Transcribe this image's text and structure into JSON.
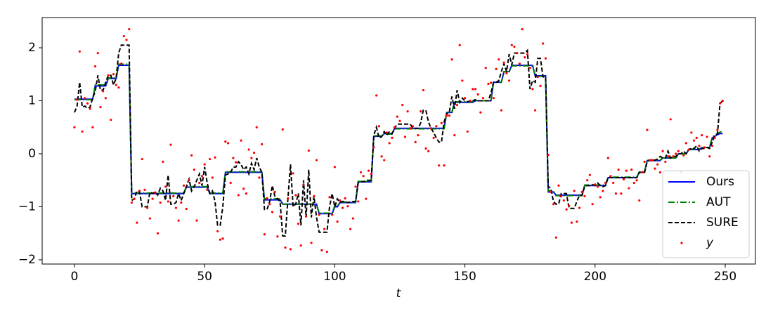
{
  "chart_data": {
    "type": "line",
    "xlabel": "t",
    "xlim": [
      -12.4,
      261.6
    ],
    "ylim": [
      -2.08,
      2.57
    ],
    "xticks": [
      0,
      50,
      100,
      150,
      200,
      250
    ],
    "yticks": [
      {
        "value": -2,
        "label": "−2"
      },
      {
        "value": -1,
        "label": "−1"
      },
      0,
      1,
      2
    ],
    "legend": "lower right",
    "x": [
      0,
      1,
      2,
      3,
      4,
      5,
      6,
      7,
      8,
      9,
      10,
      11,
      12,
      13,
      14,
      15,
      16,
      17,
      18,
      19,
      20,
      21,
      22,
      23,
      24,
      25,
      26,
      27,
      28,
      29,
      30,
      31,
      32,
      33,
      34,
      35,
      36,
      37,
      38,
      39,
      40,
      41,
      42,
      43,
      44,
      45,
      46,
      47,
      48,
      49,
      50,
      51,
      52,
      53,
      54,
      55,
      56,
      57,
      58,
      59,
      60,
      61,
      62,
      63,
      64,
      65,
      66,
      67,
      68,
      69,
      70,
      71,
      72,
      73,
      74,
      75,
      76,
      77,
      78,
      79,
      80,
      81,
      82,
      83,
      84,
      85,
      86,
      87,
      88,
      89,
      90,
      91,
      92,
      93,
      94,
      95,
      96,
      97,
      98,
      99,
      100,
      101,
      102,
      103,
      104,
      105,
      106,
      107,
      108,
      109,
      110,
      111,
      112,
      113,
      114,
      115,
      116,
      117,
      118,
      119,
      120,
      121,
      122,
      123,
      124,
      125,
      126,
      127,
      128,
      129,
      130,
      131,
      132,
      133,
      134,
      135,
      136,
      137,
      138,
      139,
      140,
      141,
      142,
      143,
      144,
      145,
      146,
      147,
      148,
      149,
      150,
      151,
      152,
      153,
      154,
      155,
      156,
      157,
      158,
      159,
      160,
      161,
      162,
      163,
      164,
      165,
      166,
      167,
      168,
      169,
      170,
      171,
      172,
      173,
      174,
      175,
      176,
      177,
      178,
      179,
      180,
      181,
      182,
      183,
      184,
      185,
      186,
      187,
      188,
      189,
      190,
      191,
      192,
      193,
      194,
      195,
      196,
      197,
      198,
      199,
      200,
      201,
      202,
      203,
      204,
      205,
      206,
      207,
      208,
      209,
      210,
      211,
      212,
      213,
      214,
      215,
      216,
      217,
      218,
      219,
      220,
      221,
      222,
      223,
      224,
      225,
      226,
      227,
      228,
      229,
      230,
      231,
      232,
      233,
      234,
      235,
      236,
      237,
      238,
      239,
      240,
      241,
      242,
      243,
      244,
      245,
      246,
      247,
      248,
      249
    ],
    "series": [
      {
        "name": "Ours",
        "color": "#0000ff",
        "style": "solid",
        "values": [
          1.03,
          1.03,
          1.03,
          1.03,
          1.03,
          1.03,
          1.03,
          1.03,
          1.28,
          1.28,
          1.28,
          1.28,
          1.28,
          1.42,
          1.42,
          1.42,
          1.42,
          1.67,
          1.67,
          1.67,
          1.67,
          1.67,
          -0.75,
          -0.75,
          -0.75,
          -0.75,
          -0.75,
          -0.75,
          -0.75,
          -0.75,
          -0.75,
          -0.75,
          -0.75,
          -0.75,
          -0.75,
          -0.75,
          -0.75,
          -0.75,
          -0.75,
          -0.75,
          -0.75,
          -0.75,
          -0.75,
          -0.63,
          -0.63,
          -0.63,
          -0.63,
          -0.63,
          -0.63,
          -0.63,
          -0.63,
          -0.63,
          -0.75,
          -0.75,
          -0.75,
          -0.75,
          -0.75,
          -0.75,
          -0.35,
          -0.35,
          -0.35,
          -0.35,
          -0.35,
          -0.35,
          -0.35,
          -0.35,
          -0.35,
          -0.35,
          -0.35,
          -0.35,
          -0.35,
          -0.35,
          -0.35,
          -0.87,
          -0.87,
          -0.87,
          -0.87,
          -0.87,
          -0.87,
          -0.87,
          -0.95,
          -0.95,
          -0.95,
          -0.95,
          -0.95,
          -0.95,
          -0.95,
          -0.95,
          -0.95,
          -0.95,
          -0.95,
          -0.95,
          -0.95,
          -0.95,
          -1.13,
          -1.13,
          -1.13,
          -1.13,
          -1.13,
          -1.13,
          -1.0,
          -1.0,
          -0.92,
          -0.92,
          -0.92,
          -0.92,
          -0.92,
          -0.92,
          -0.92,
          -0.53,
          -0.53,
          -0.53,
          -0.53,
          -0.53,
          -0.53,
          0.33,
          0.33,
          0.33,
          0.33,
          0.38,
          0.38,
          0.38,
          0.38,
          0.48,
          0.48,
          0.48,
          0.48,
          0.48,
          0.48,
          0.48,
          0.48,
          0.48,
          0.48,
          0.48,
          0.48,
          0.48,
          0.48,
          0.48,
          0.48,
          0.48,
          0.48,
          0.48,
          0.48,
          0.78,
          0.78,
          0.78,
          0.97,
          0.97,
          0.97,
          0.97,
          0.97,
          0.97,
          0.97,
          0.97,
          1.0,
          1.0,
          1.0,
          1.0,
          1.0,
          1.0,
          1.0,
          1.35,
          1.35,
          1.35,
          1.35,
          1.55,
          1.55,
          1.55,
          1.67,
          1.67,
          1.67,
          1.67,
          1.67,
          1.67,
          1.67,
          1.67,
          1.67,
          1.47,
          1.47,
          1.47,
          1.47,
          1.47,
          -0.72,
          -0.72,
          -0.72,
          -0.78,
          -0.78,
          -0.78,
          -0.78,
          -0.78,
          -0.78,
          -0.78,
          -0.78,
          -0.78,
          -0.78,
          -0.78,
          -0.6,
          -0.6,
          -0.6,
          -0.6,
          -0.6,
          -0.6,
          -0.6,
          -0.6,
          -0.6,
          -0.45,
          -0.45,
          -0.45,
          -0.45,
          -0.45,
          -0.45,
          -0.45,
          -0.45,
          -0.45,
          -0.45,
          -0.45,
          -0.45,
          -0.35,
          -0.35,
          -0.35,
          -0.13,
          -0.13,
          -0.13,
          -0.13,
          -0.13,
          -0.13,
          -0.08,
          -0.08,
          -0.08,
          -0.08,
          -0.08,
          -0.08,
          0.0,
          0.0,
          0.0,
          0.0,
          0.08,
          0.08,
          0.08,
          0.08,
          0.08,
          0.12,
          0.12,
          0.12,
          0.12,
          0.3,
          0.33,
          0.36,
          0.38,
          0.38
        ]
      },
      {
        "name": "AUT",
        "color": "#008000",
        "style": "dashdot",
        "values": [
          1.02,
          1.02,
          1.02,
          1.02,
          1.02,
          1.02,
          1.02,
          1.02,
          1.3,
          1.3,
          1.3,
          1.3,
          1.3,
          1.43,
          1.43,
          1.43,
          1.43,
          1.69,
          1.69,
          1.69,
          1.69,
          1.69,
          -0.74,
          -0.74,
          -0.74,
          -0.74,
          -0.74,
          -0.74,
          -0.74,
          -0.74,
          -0.74,
          -0.74,
          -0.74,
          -0.74,
          -0.74,
          -0.74,
          -0.74,
          -0.74,
          -0.74,
          -0.74,
          -0.74,
          -0.74,
          -0.74,
          -0.62,
          -0.62,
          -0.62,
          -0.62,
          -0.62,
          -0.62,
          -0.62,
          -0.62,
          -0.62,
          -0.74,
          -0.74,
          -0.74,
          -0.74,
          -0.74,
          -0.74,
          -0.34,
          -0.34,
          -0.34,
          -0.34,
          -0.34,
          -0.34,
          -0.34,
          -0.34,
          -0.34,
          -0.34,
          -0.34,
          -0.34,
          -0.34,
          -0.34,
          -0.34,
          -0.85,
          -0.85,
          -0.85,
          -0.85,
          -0.85,
          -0.85,
          -0.85,
          -0.95,
          -0.95,
          -0.95,
          -0.95,
          -0.95,
          -0.95,
          -0.95,
          -0.95,
          -0.95,
          -0.95,
          -0.95,
          -0.95,
          -0.95,
          -0.95,
          -1.12,
          -1.12,
          -1.12,
          -1.12,
          -1.12,
          -1.12,
          -0.98,
          -0.98,
          -0.91,
          -0.91,
          -0.91,
          -0.91,
          -0.91,
          -0.91,
          -0.91,
          -0.52,
          -0.52,
          -0.52,
          -0.52,
          -0.52,
          -0.52,
          0.34,
          0.34,
          0.34,
          0.34,
          0.37,
          0.37,
          0.37,
          0.37,
          0.47,
          0.47,
          0.47,
          0.47,
          0.47,
          0.47,
          0.47,
          0.47,
          0.47,
          0.47,
          0.47,
          0.47,
          0.47,
          0.47,
          0.47,
          0.47,
          0.47,
          0.47,
          0.47,
          0.47,
          0.78,
          0.78,
          0.78,
          0.98,
          0.98,
          0.98,
          0.98,
          0.98,
          0.98,
          0.98,
          0.98,
          1.0,
          1.0,
          1.0,
          1.0,
          1.0,
          1.0,
          1.0,
          1.35,
          1.35,
          1.35,
          1.35,
          1.55,
          1.55,
          1.55,
          1.66,
          1.66,
          1.66,
          1.66,
          1.66,
          1.66,
          1.66,
          1.66,
          1.66,
          1.46,
          1.46,
          1.46,
          1.46,
          1.46,
          -0.7,
          -0.7,
          -0.7,
          -0.79,
          -0.79,
          -0.79,
          -0.79,
          -0.79,
          -0.79,
          -0.79,
          -0.79,
          -0.79,
          -0.79,
          -0.79,
          -0.59,
          -0.59,
          -0.59,
          -0.59,
          -0.59,
          -0.59,
          -0.59,
          -0.59,
          -0.59,
          -0.44,
          -0.44,
          -0.44,
          -0.44,
          -0.44,
          -0.44,
          -0.44,
          -0.44,
          -0.44,
          -0.44,
          -0.44,
          -0.44,
          -0.34,
          -0.34,
          -0.34,
          -0.12,
          -0.12,
          -0.12,
          -0.12,
          -0.12,
          -0.12,
          -0.08,
          -0.08,
          -0.08,
          -0.08,
          -0.08,
          -0.08,
          0.0,
          0.0,
          0.0,
          0.0,
          0.09,
          0.09,
          0.09,
          0.09,
          0.09,
          0.12,
          0.12,
          0.12,
          0.12,
          0.31,
          0.35,
          0.38,
          0.41,
          0.42
        ]
      },
      {
        "name": "SURE",
        "color": "#000000",
        "style": "dashed",
        "values": [
          0.78,
          0.9,
          1.35,
          0.88,
          0.9,
          0.86,
          0.88,
          1.05,
          1.18,
          1.48,
          1.2,
          1.2,
          1.35,
          1.48,
          1.48,
          1.3,
          1.42,
          1.9,
          2.05,
          2.05,
          2.05,
          2.05,
          -0.88,
          -0.85,
          -0.7,
          -0.72,
          -1.0,
          -1.0,
          -1.0,
          -0.72,
          -0.75,
          -0.72,
          -0.78,
          -0.65,
          -0.7,
          -0.88,
          -0.4,
          -0.95,
          -0.95,
          -0.92,
          -0.75,
          -0.88,
          -0.75,
          -0.62,
          -0.48,
          -0.7,
          -0.62,
          -0.5,
          -0.38,
          -0.6,
          -0.25,
          -0.55,
          -0.75,
          -0.7,
          -0.9,
          -1.35,
          -1.35,
          -1.0,
          -0.4,
          -0.38,
          -0.35,
          -0.25,
          -0.25,
          -0.15,
          -0.2,
          -0.3,
          -0.25,
          -0.38,
          -0.18,
          -0.3,
          -0.08,
          -0.25,
          -0.35,
          -1.05,
          -1.05,
          -0.9,
          -0.6,
          -0.8,
          -0.85,
          -0.9,
          -1.55,
          -1.55,
          -0.85,
          -0.2,
          -1.0,
          -0.95,
          -0.75,
          -1.35,
          -0.5,
          -1.2,
          -0.3,
          -1.2,
          -0.8,
          -1.2,
          -1.48,
          -1.48,
          -1.48,
          -1.48,
          -1.0,
          -0.75,
          -1.0,
          -0.85,
          -0.92,
          -0.9,
          -0.9,
          -0.92,
          -0.92,
          -0.9,
          -0.9,
          -0.55,
          -0.53,
          -0.53,
          -0.5,
          -0.5,
          -0.5,
          0.35,
          0.5,
          0.3,
          0.32,
          0.42,
          0.35,
          0.42,
          0.38,
          0.48,
          0.56,
          0.56,
          0.56,
          0.56,
          0.56,
          0.56,
          0.48,
          0.48,
          0.48,
          0.58,
          0.82,
          0.82,
          0.6,
          0.48,
          0.4,
          0.3,
          0.22,
          0.22,
          0.6,
          0.75,
          0.78,
          1.08,
          0.85,
          1.2,
          0.97,
          1.05,
          1.0,
          0.98,
          1.0,
          1.0,
          1.02,
          1.0,
          1.0,
          1.0,
          1.0,
          1.0,
          1.15,
          1.35,
          1.35,
          1.38,
          1.55,
          1.7,
          1.55,
          1.88,
          1.68,
          1.9,
          1.9,
          1.9,
          1.9,
          1.9,
          1.95,
          1.22,
          1.38,
          1.35,
          1.8,
          1.8,
          1.45,
          1.45,
          -0.62,
          -0.65,
          -0.9,
          -0.95,
          -0.95,
          -0.75,
          -0.75,
          -0.75,
          -1.03,
          -1.03,
          -1.03,
          -0.9,
          -0.78,
          -0.78,
          -0.62,
          -0.6,
          -0.6,
          -0.58,
          -0.6,
          -0.55,
          -0.6,
          -0.62,
          -0.6,
          -0.45,
          -0.45,
          -0.45,
          -0.45,
          -0.45,
          -0.45,
          -0.45,
          -0.45,
          -0.45,
          -0.45,
          -0.45,
          -0.45,
          -0.35,
          -0.35,
          -0.35,
          -0.15,
          -0.12,
          -0.12,
          -0.12,
          -0.1,
          -0.05,
          -0.08,
          -0.08,
          0.05,
          -0.08,
          -0.05,
          -0.05,
          0.0,
          0.0,
          0.05,
          0.0,
          0.08,
          0.1,
          0.1,
          0.15,
          0.05,
          0.1,
          0.1,
          0.12,
          0.1,
          0.22,
          0.35,
          0.38,
          0.95,
          1.0
        ]
      },
      {
        "name": "y",
        "color": "#ff0000",
        "style": "points",
        "values": [
          0.5,
          1.02,
          1.93,
          0.42,
          1.05,
          0.95,
          0.85,
          0.5,
          1.65,
          1.9,
          0.88,
          1.18,
          1.05,
          1.48,
          0.64,
          1.5,
          1.3,
          1.25,
          1.7,
          2.22,
          2.15,
          2.35,
          -0.92,
          -0.85,
          -1.3,
          -0.7,
          -0.1,
          -0.68,
          -1.02,
          -1.22,
          -0.85,
          -0.73,
          -1.5,
          -0.92,
          -0.15,
          -0.62,
          -0.9,
          0.17,
          -0.8,
          -1.02,
          -1.26,
          -0.92,
          -0.6,
          -1.04,
          -0.5,
          -0.03,
          -0.3,
          -1.26,
          -0.55,
          -0.42,
          -0.2,
          -0.68,
          -0.1,
          -0.45,
          -0.07,
          -1.46,
          -1.62,
          -1.6,
          0.23,
          0.2,
          -0.55,
          -0.08,
          -0.16,
          -0.78,
          0.25,
          -0.66,
          -0.75,
          0.08,
          -0.08,
          0.02,
          0.5,
          -0.45,
          0.18,
          -1.52,
          -0.84,
          -0.95,
          -1.1,
          -0.72,
          -1.56,
          -1.18,
          0.46,
          -1.77,
          -0.84,
          -1.8,
          -0.37,
          -0.78,
          -1.32,
          -1.73,
          -0.58,
          -1.18,
          0.06,
          -1.68,
          -0.8,
          -0.12,
          -1.15,
          -1.82,
          -1.42,
          -1.85,
          -0.82,
          -1.15,
          -0.25,
          -1.28,
          -0.88,
          -1.02,
          -0.84,
          -0.99,
          -1.42,
          -1.22,
          -0.62,
          -0.9,
          -0.35,
          -0.42,
          -0.85,
          -0.32,
          -0.38,
          0.12,
          1.1,
          0.52,
          -0.05,
          -0.12,
          0.4,
          0.2,
          0.3,
          0.5,
          0.7,
          0.62,
          0.92,
          0.32,
          0.8,
          0.48,
          0.52,
          0.22,
          0.35,
          0.8,
          1.2,
          0.1,
          0.05,
          0.48,
          0.3,
          0.52,
          -0.22,
          0.58,
          -0.22,
          0.72,
          0.72,
          1.78,
          0.35,
          0.92,
          2.05,
          1.38,
          1.05,
          0.42,
          1.0,
          1.22,
          1.22,
          1.12,
          0.78,
          1.05,
          1.62,
          1.32,
          1.34,
          1.05,
          1.6,
          1.78,
          0.82,
          1.72,
          1.52,
          1.38,
          2.05,
          2.02,
          1.9,
          1.7,
          2.35,
          1.82,
          1.88,
          1.62,
          1.22,
          0.82,
          1.45,
          1.28,
          2.08,
          1.8,
          -0.02,
          -0.72,
          -0.95,
          -1.58,
          -0.6,
          -0.8,
          -0.88,
          -1.05,
          -0.98,
          -1.3,
          -0.7,
          -1.28,
          -1.02,
          -0.72,
          -0.8,
          -0.5,
          -0.4,
          -0.95,
          -0.58,
          -0.62,
          -0.82,
          -0.7,
          -0.55,
          -0.08,
          -0.42,
          -0.55,
          -0.75,
          -0.3,
          -0.75,
          -0.48,
          -0.32,
          -0.65,
          -0.3,
          -0.55,
          -0.5,
          -0.88,
          -0.35,
          -0.15,
          0.45,
          -0.12,
          -0.12,
          -0.28,
          -0.2,
          -0.35,
          0.05,
          -0.15,
          -0.05,
          0.65,
          -0.05,
          0.0,
          0.05,
          -0.35,
          -0.03,
          0.2,
          0.08,
          0.4,
          0.25,
          0.3,
          0.15,
          0.35,
          0.12,
          0.32,
          -0.05,
          0.15,
          0.3,
          0.45,
          0.95,
          1.0
        ]
      }
    ]
  }
}
